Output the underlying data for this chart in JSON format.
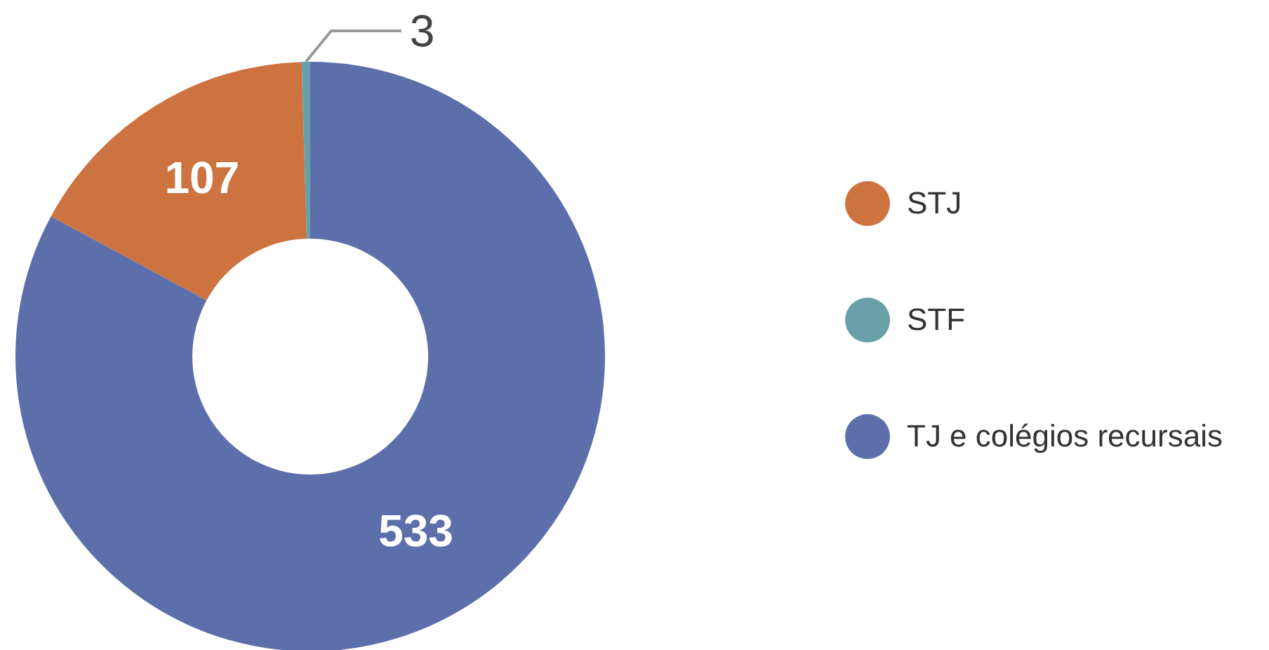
{
  "chart_data": {
    "type": "donut",
    "categories": [
      "STJ",
      "STF",
      "TJ e colégios recursais"
    ],
    "values": [
      107,
      3,
      533
    ],
    "colors": [
      "#cc7340",
      "#67a0a8",
      "#5c6faa"
    ],
    "data_labels": true,
    "legend": "right"
  }
}
